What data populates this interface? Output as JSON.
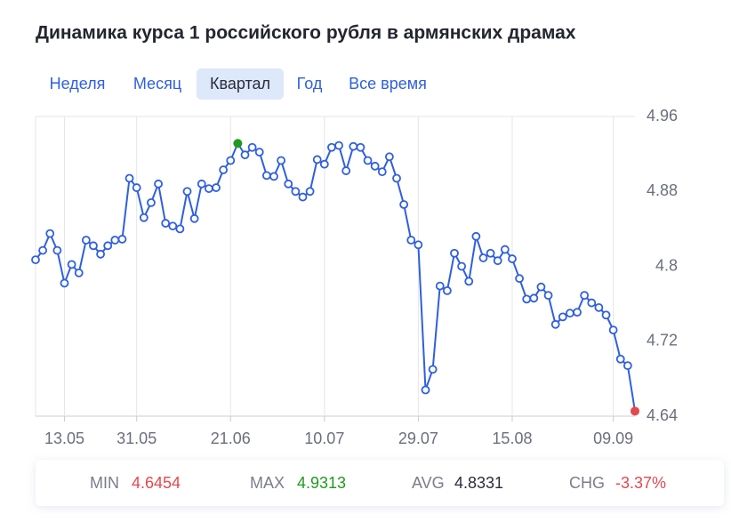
{
  "header": {
    "title": "Динамика курса 1 российского рубля в армянских драмах"
  },
  "tabs": {
    "items": [
      "Неделя",
      "Месяц",
      "Квартал",
      "Год",
      "Все время"
    ],
    "active": 2
  },
  "chart_data": {
    "type": "line",
    "categories": [
      null,
      null,
      null,
      null,
      "13.05",
      null,
      null,
      null,
      null,
      null,
      null,
      null,
      null,
      null,
      "31.05",
      null,
      null,
      null,
      null,
      null,
      null,
      null,
      null,
      null,
      null,
      null,
      null,
      "21.06",
      null,
      null,
      null,
      null,
      null,
      null,
      null,
      null,
      null,
      null,
      null,
      null,
      "10.07",
      null,
      null,
      null,
      null,
      null,
      null,
      null,
      null,
      null,
      null,
      null,
      null,
      "29.07",
      null,
      null,
      null,
      null,
      null,
      null,
      null,
      null,
      null,
      null,
      null,
      null,
      "15.08",
      null,
      null,
      null,
      null,
      null,
      null,
      null,
      null,
      null,
      null,
      null,
      null,
      null,
      "09.09",
      null,
      null,
      null
    ],
    "values": [
      4.807,
      4.817,
      4.835,
      4.817,
      4.782,
      4.802,
      4.793,
      4.828,
      4.822,
      4.813,
      4.822,
      4.828,
      4.829,
      4.894,
      4.884,
      4.852,
      4.868,
      4.888,
      4.846,
      4.843,
      4.84,
      4.88,
      4.851,
      4.888,
      4.883,
      4.884,
      4.903,
      4.913,
      4.9313,
      4.919,
      4.927,
      4.922,
      4.897,
      4.896,
      4.913,
      4.888,
      4.88,
      4.874,
      4.88,
      4.914,
      4.909,
      4.927,
      4.929,
      4.902,
      4.928,
      4.927,
      4.913,
      4.907,
      4.901,
      4.917,
      4.894,
      4.866,
      4.828,
      4.823,
      4.668,
      4.69,
      4.779,
      4.774,
      4.814,
      4.8,
      4.784,
      4.832,
      4.809,
      4.814,
      4.806,
      4.818,
      4.808,
      4.787,
      4.765,
      4.766,
      4.778,
      4.769,
      4.738,
      4.746,
      4.75,
      4.751,
      4.769,
      4.761,
      4.756,
      4.748,
      4.732,
      4.701,
      4.694,
      4.6454
    ],
    "color": "#2f5fe0",
    "max_color": "#1f9a1f",
    "min_color": "#e5484d",
    "ylim": [
      4.64,
      4.96
    ],
    "yticks": [
      4.64,
      4.72,
      4.8,
      4.88,
      4.96
    ],
    "grid": true
  },
  "stats": [
    {
      "label": "MIN",
      "value": "4.6454",
      "color": "#e5484d"
    },
    {
      "label": "MAX",
      "value": "4.9313",
      "color": "#1f9a1f"
    },
    {
      "label": "AVG",
      "value": "4.8331",
      "color": "#2a2d3a"
    },
    {
      "label": "CHG",
      "value": "-3.37%",
      "color": "#e5484d"
    }
  ]
}
